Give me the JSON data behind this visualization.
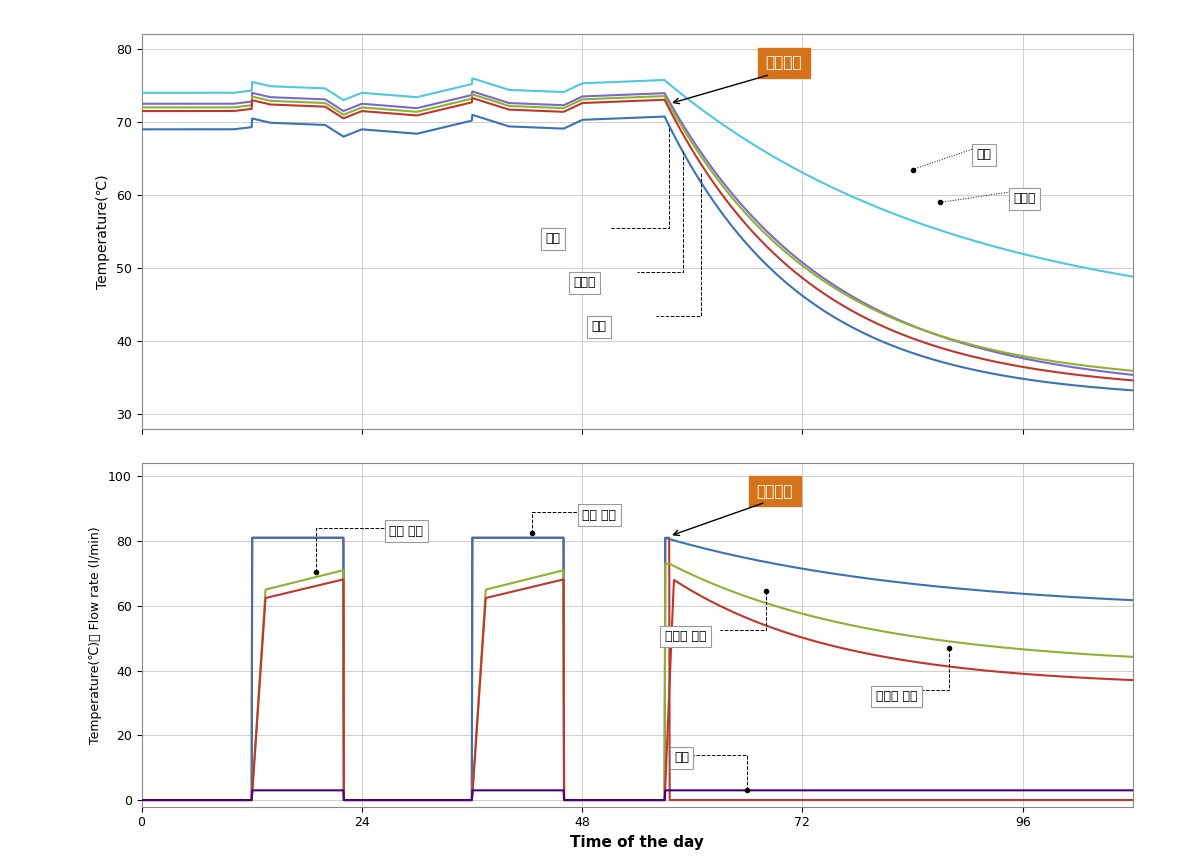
{
  "top_chart": {
    "ylabel": "Temperature(℃)",
    "ylim": [
      28,
      82
    ],
    "yticks": [
      30,
      40,
      50,
      60,
      70,
      80
    ],
    "xlim": [
      0,
      108
    ],
    "xticks": [
      0,
      24,
      48,
      72,
      96
    ],
    "labels": {
      "bang_yeol_sijak": "방열시작",
      "sangbu": "상부",
      "jungsangbu": "중상부",
      "habu": "하부",
      "junghabu": "중하부",
      "jungbu": "중부"
    },
    "line_colors": [
      "#4EC8E0",
      "#7B68CD",
      "#8DB230",
      "#C0362B",
      "#3A72B5"
    ],
    "cool_start": 57
  },
  "bottom_chart": {
    "ylabel": "Temperature(℃)， Flow rate (l/min)",
    "xlabel": "Time of the day",
    "ylim": [
      -2,
      104
    ],
    "yticks": [
      0,
      20,
      40,
      60,
      80,
      100
    ],
    "xlim": [
      0,
      108
    ],
    "xticks": [
      0,
      24,
      48,
      72,
      96
    ],
    "labels": {
      "bang_yeol_sijak": "방열시작",
      "heater_input": "히터 입구",
      "heater_output": "히터 출구",
      "radiator_outlet": "방열기 출구",
      "radiator_inlet": "방열기 입구",
      "flow": "유량"
    },
    "heater_color": "#C0362B",
    "radiator_outlet_color": "#C0362B",
    "radiator_inlet_color": "#8DB230",
    "heater_outlet_color": "#3A72B5",
    "flow_color": "#4B0082",
    "heat_cycles": [
      [
        12,
        22
      ],
      [
        36,
        46
      ]
    ],
    "cool_start": 57
  },
  "background_color": "#FFFFFF",
  "grid_color": "#C8C8C8",
  "orange_box_color": "#D4731A",
  "label_box_edge": "#999999"
}
